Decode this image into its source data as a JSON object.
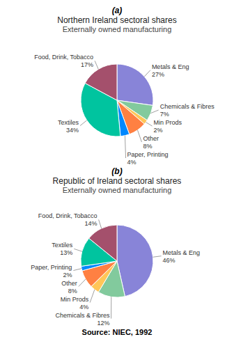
{
  "chart_data": [
    {
      "type": "pie",
      "title": "Northern Ireland sectoral shares",
      "subtitle": "Externally owned manufacturing",
      "annotations": [
        "(a)"
      ],
      "categories": [
        "Metals & Eng",
        "Chemicals & Fibres",
        "Min Prods",
        "Other",
        "Paper, Printing",
        "Textiles",
        "Food, Drink, Tobacco"
      ],
      "values": [
        27,
        7,
        2,
        8,
        4,
        34,
        17
      ],
      "value_labels": [
        "27%",
        "7%",
        "2%",
        "8%",
        "4%",
        "34%",
        "17%"
      ],
      "colors": [
        "#8884d8",
        "#82ca9d",
        "#ffc658",
        "#ff8042",
        "#0088fe",
        "#00c49f",
        "#a4506c"
      ],
      "data_labels": true
    },
    {
      "type": "pie",
      "title": "Republic of Ireland sectoral shares",
      "subtitle": "Externally owned manufacturing",
      "annotations": [
        "(b)",
        "Source: NIEC, 1992"
      ],
      "categories": [
        "Metals & Eng",
        "Chemicals & Fibres",
        "Min Prods",
        "Other",
        "Paper, Printing",
        "Textiles",
        "Food, Drink, Tobacco"
      ],
      "values": [
        46,
        12,
        4,
        8,
        2,
        13,
        14
      ],
      "value_labels": [
        "46%",
        "12%",
        "4%",
        "8%",
        "2%",
        "13%",
        "14%"
      ],
      "colors": [
        "#8884d8",
        "#82ca9d",
        "#ffc658",
        "#ff8042",
        "#0088fe",
        "#00c49f",
        "#a4506c"
      ],
      "data_labels": true
    }
  ]
}
